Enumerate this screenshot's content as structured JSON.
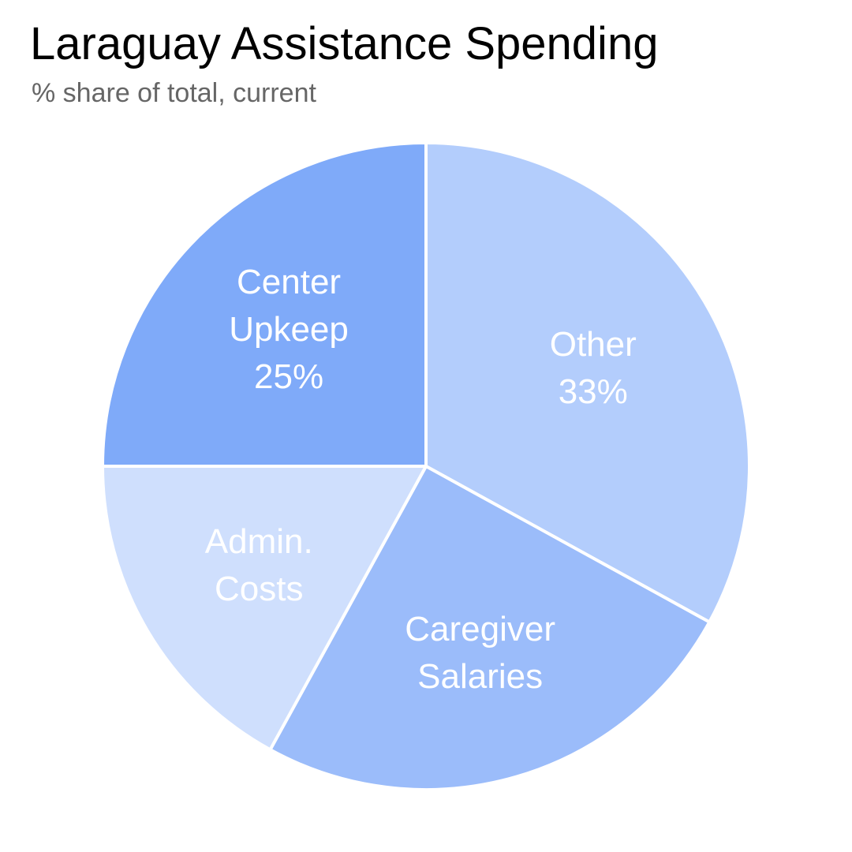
{
  "chart_data": {
    "type": "pie",
    "title": "Laraguay Assistance Spending",
    "subtitle": "% share of total, current",
    "slices": [
      {
        "name": "Other",
        "value": 33,
        "color": "#b3cdfc",
        "label_lines": [
          "Other",
          "33%"
        ]
      },
      {
        "name": "Caregiver Salaries",
        "value": 25,
        "color": "#9bbcfa",
        "label_lines": [
          "Caregiver",
          "Salaries"
        ]
      },
      {
        "name": "Admin. Costs",
        "value": 17,
        "color": "#cfdffd",
        "label_lines": [
          "Admin.",
          "Costs"
        ]
      },
      {
        "name": "Center Upkeep",
        "value": 25,
        "color": "#7faaf9",
        "label_lines": [
          "Center",
          "Upkeep",
          "25%"
        ]
      }
    ],
    "start_angle": "12 o'clock",
    "direction": "clockwise",
    "slice_border_color": "#ffffff"
  }
}
